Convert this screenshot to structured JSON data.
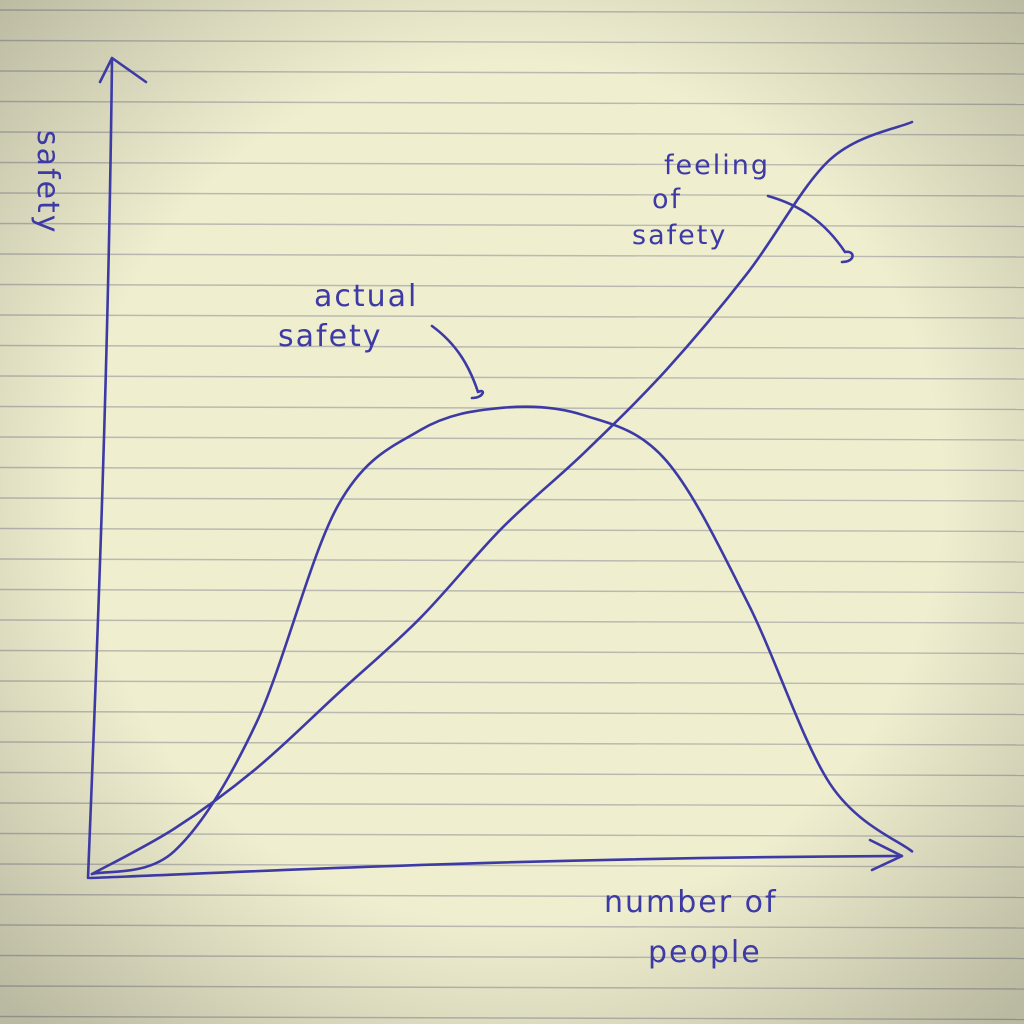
{
  "chart_data": {
    "type": "line",
    "ylabel": "safety",
    "xlabel": "number of people",
    "xlabel_lines": [
      "number of",
      "people"
    ],
    "x": [
      0,
      1,
      2,
      3,
      4,
      5,
      6,
      7,
      8,
      9,
      10
    ],
    "series": [
      {
        "name": "actual safety",
        "label_lines": [
          "actual",
          "safety"
        ],
        "values": [
          0,
          3,
          20,
          49,
          59,
          62,
          61,
          55,
          36,
          12,
          3
        ]
      },
      {
        "name": "feeling of safety",
        "label_lines": [
          "feeling",
          "of",
          "safety"
        ],
        "values": [
          0,
          6,
          14,
          24,
          34,
          46,
          56,
          67,
          80,
          95,
          100
        ]
      }
    ],
    "grid": false,
    "legend": "none",
    "colors": {
      "ink": "#3d3aa6",
      "paper": "#efeecf",
      "rule": "#a8a8a8"
    }
  }
}
